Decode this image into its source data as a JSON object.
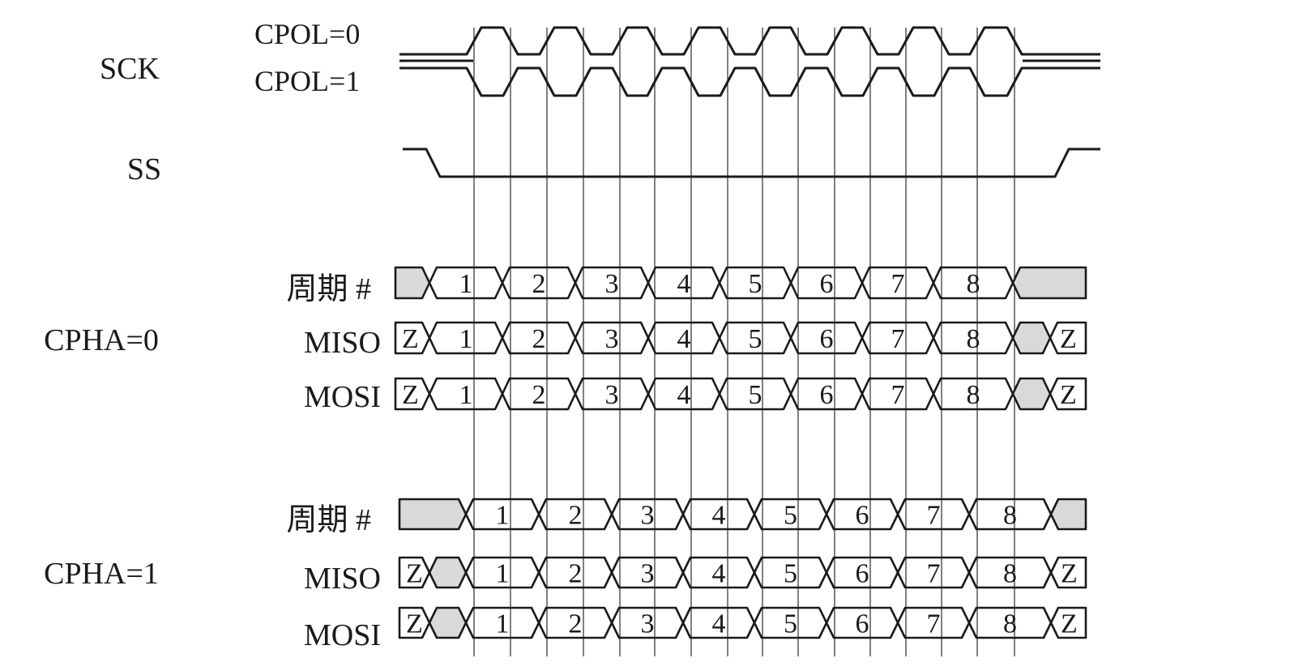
{
  "labels": {
    "sck": "SCK",
    "cpol0": "CPOL=0",
    "cpol1": "CPOL=1",
    "ss": "SS",
    "cpha0": "CPHA=0",
    "cpha1": "CPHA=1",
    "cycle": "周期 #",
    "miso": "MISO",
    "mosi": "MOSI"
  },
  "cycles": [
    "1",
    "2",
    "3",
    "4",
    "5",
    "6",
    "7",
    "8"
  ],
  "hiz": "Z",
  "colors": {
    "line": "#1a1a1a",
    "shade": "#d9d9d9",
    "background": "#ffffff"
  }
}
